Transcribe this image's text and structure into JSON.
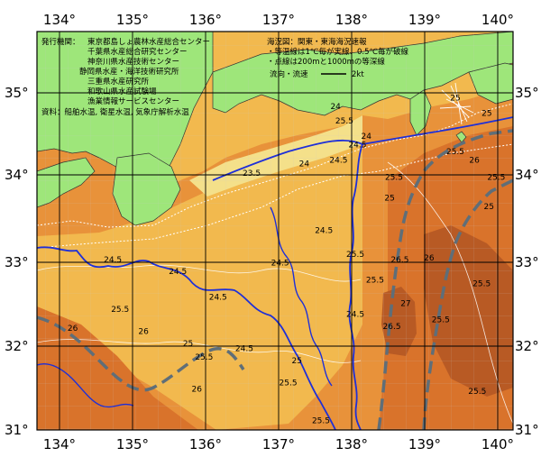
{
  "map": {
    "lon_ticks": [
      "134°",
      "135°",
      "136°",
      "137°",
      "138°",
      "139°",
      "140°"
    ],
    "lat_ticks": [
      "35°",
      "34°",
      "33°",
      "32°",
      "31°"
    ],
    "publisher_label": "発行機関：",
    "publishers": [
      "東京都島しょ農林水産総合センター",
      "千葉県水産総合研究センター",
      "神奈川県水産技術センター",
      "静岡県水産・海洋技術研究所",
      "三重県水産研究所",
      "和歌山県水産試験場",
      "漁業情報サービスセンター"
    ],
    "source_label": "資料：船舶水温, 衛星水温, 気象庁解析水温",
    "sea_area": "海況図：関東・東海海況速報",
    "legend_isotherm": "・等温線は1℃毎が実線、0.5℃毎が破線",
    "legend_depth": "・点線は200mと1000mの等深線",
    "flow_label": "流向・流速",
    "flow_scale": "2kt",
    "colors": {
      "land": "#9EE67A",
      "warm_23": "#F4E08A",
      "warm_24": "#F2B94E",
      "warm_25": "#E8923A",
      "warm_26": "#D9732B",
      "warm_27": "#B85A24",
      "current": "#1E2FD8",
      "kuroshio_axis": "#5F6E78"
    },
    "isotherm_labels": [
      {
        "text": "23.5",
        "lon": 136.63,
        "lat": 33.97
      },
      {
        "text": "24",
        "lon": 137.35,
        "lat": 34.08
      },
      {
        "text": "24",
        "lon": 137.78,
        "lat": 34.75
      },
      {
        "text": "24",
        "lon": 138.2,
        "lat": 34.4
      },
      {
        "text": "24.5",
        "lon": 137.82,
        "lat": 34.12
      },
      {
        "text": "24.5",
        "lon": 138.08,
        "lat": 34.3
      },
      {
        "text": "24.5",
        "lon": 134.73,
        "lat": 32.96
      },
      {
        "text": "24.5",
        "lon": 135.62,
        "lat": 32.82
      },
      {
        "text": "24.5",
        "lon": 136.17,
        "lat": 32.52
      },
      {
        "text": "24.5",
        "lon": 136.53,
        "lat": 31.92
      },
      {
        "text": "24.5",
        "lon": 137.02,
        "lat": 32.92
      },
      {
        "text": "24.5",
        "lon": 137.62,
        "lat": 33.3
      },
      {
        "text": "24.5",
        "lon": 138.05,
        "lat": 32.32
      },
      {
        "text": "25",
        "lon": 135.76,
        "lat": 31.98
      },
      {
        "text": "25",
        "lon": 137.25,
        "lat": 31.78
      },
      {
        "text": "25",
        "lon": 138.52,
        "lat": 33.68
      },
      {
        "text": "25",
        "lon": 139.42,
        "lat": 34.85
      },
      {
        "text": "25",
        "lon": 139.85,
        "lat": 34.67
      },
      {
        "text": "25.5",
        "lon": 137.9,
        "lat": 34.58
      },
      {
        "text": "25.5",
        "lon": 138.05,
        "lat": 33.02
      },
      {
        "text": "25.5",
        "lon": 138.32,
        "lat": 32.72
      },
      {
        "text": "25.5",
        "lon": 138.58,
        "lat": 33.92
      },
      {
        "text": "25.5",
        "lon": 134.83,
        "lat": 32.38
      },
      {
        "text": "25.5",
        "lon": 135.98,
        "lat": 31.82
      },
      {
        "text": "25.5",
        "lon": 137.13,
        "lat": 31.52
      },
      {
        "text": "25.5",
        "lon": 137.58,
        "lat": 31.08
      },
      {
        "text": "25.5",
        "lon": 139.22,
        "lat": 32.26
      },
      {
        "text": "25.5",
        "lon": 139.78,
        "lat": 32.68
      },
      {
        "text": "25.5",
        "lon": 139.72,
        "lat": 31.42
      },
      {
        "text": "25.5",
        "lon": 139.98,
        "lat": 33.92
      },
      {
        "text": "25.5",
        "lon": 139.42,
        "lat": 34.22
      },
      {
        "text": "26",
        "lon": 134.18,
        "lat": 32.16
      },
      {
        "text": "26",
        "lon": 135.15,
        "lat": 32.12
      },
      {
        "text": "26",
        "lon": 135.88,
        "lat": 31.45
      },
      {
        "text": "26",
        "lon": 139.06,
        "lat": 32.98
      },
      {
        "text": "26",
        "lon": 139.68,
        "lat": 34.12
      },
      {
        "text": "26.5",
        "lon": 138.55,
        "lat": 32.18
      },
      {
        "text": "26.5",
        "lon": 138.66,
        "lat": 32.96
      },
      {
        "text": "27",
        "lon": 138.74,
        "lat": 32.45
      },
      {
        "text": "25",
        "lon": 139.88,
        "lat": 33.58
      }
    ]
  }
}
